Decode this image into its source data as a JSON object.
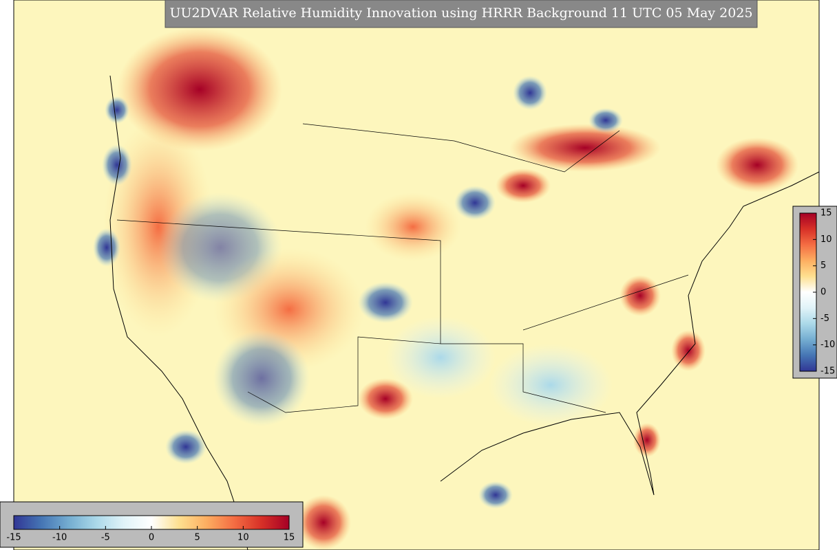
{
  "title": "UU2DVAR Relative Humidity Innovation using HRRR Background 11 UTC 05 May 2025",
  "colormap": [
    "#313695",
    "#4575b4",
    "#74add1",
    "#abd9e9",
    "#e0f3f8",
    "#ffffff",
    "#fee090",
    "#fdae61",
    "#f46d43",
    "#d73027",
    "#a50026"
  ],
  "colorbar_right": {
    "lim": [
      -15,
      15
    ],
    "ticks": [
      15,
      10,
      5,
      0,
      -5,
      -10,
      -15
    ]
  },
  "colorbar_bottom": {
    "lim": [
      -15,
      15
    ],
    "ticks": [
      -15,
      -10,
      -5,
      0,
      5,
      10,
      15
    ]
  }
}
